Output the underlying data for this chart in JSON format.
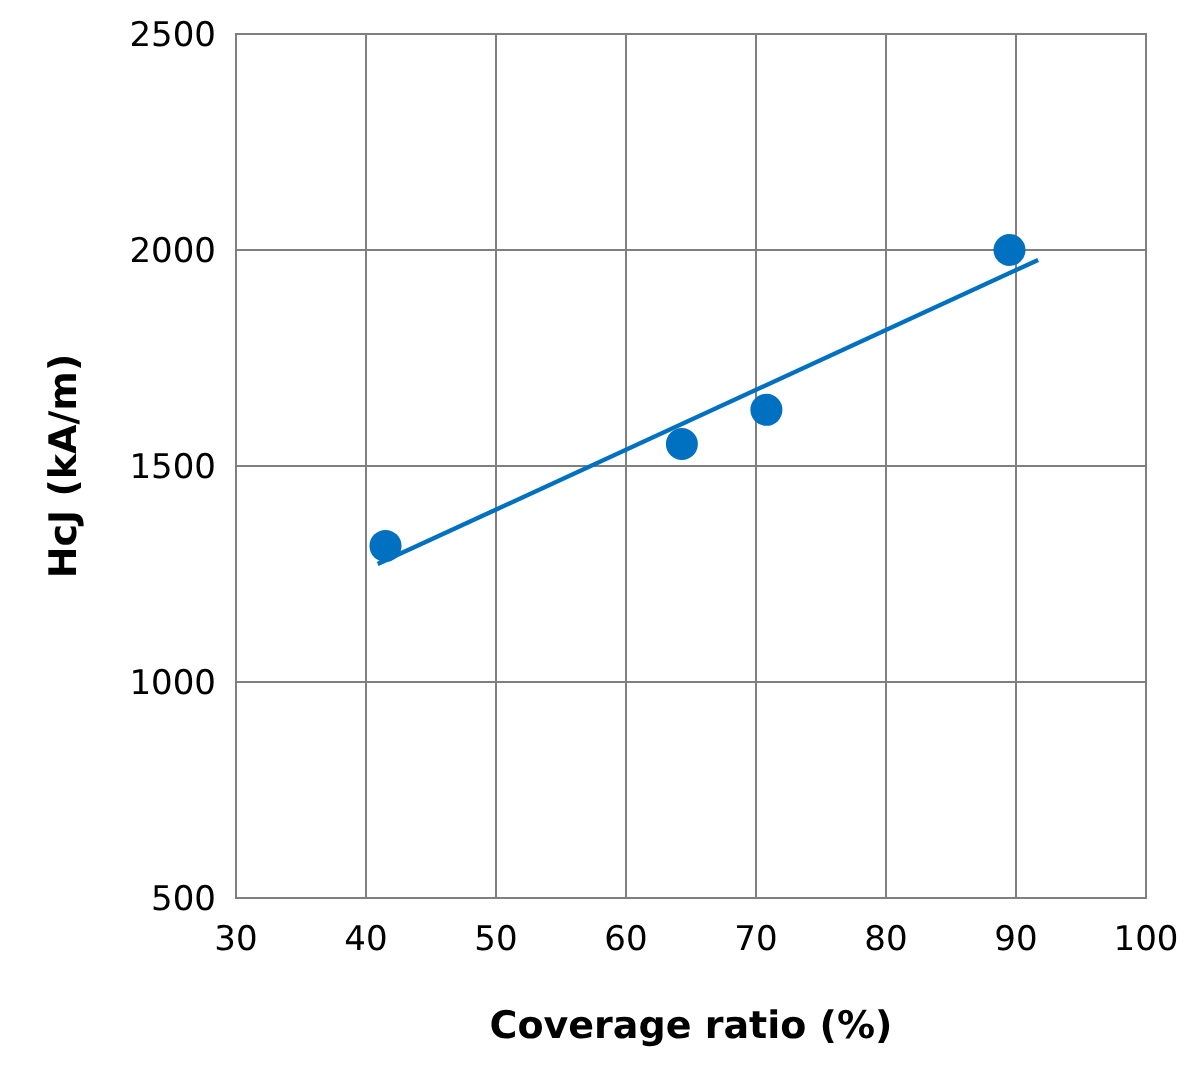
{
  "chart_data": {
    "type": "scatter",
    "xlabel": "Coverage ratio (%)",
    "ylabel": "HcJ (kA/m)",
    "xlim": [
      30,
      100
    ],
    "xticks": [
      30,
      40,
      50,
      60,
      70,
      80,
      90,
      100
    ],
    "ylim": [
      500,
      2500
    ],
    "yticks": [
      500,
      1000,
      1500,
      2000,
      2500
    ],
    "grid": true,
    "series": [
      {
        "marker": "circle",
        "color": "#0070c0",
        "x": [
          41.5,
          64.3,
          70.8,
          89.5
        ],
        "values": [
          1315,
          1551,
          1630,
          2000
        ]
      },
      {
        "type": "line",
        "marker": "none",
        "color": "#0070c0",
        "x": [
          40.9,
          91.7
        ],
        "values": [
          1273,
          1977
        ]
      }
    ]
  }
}
